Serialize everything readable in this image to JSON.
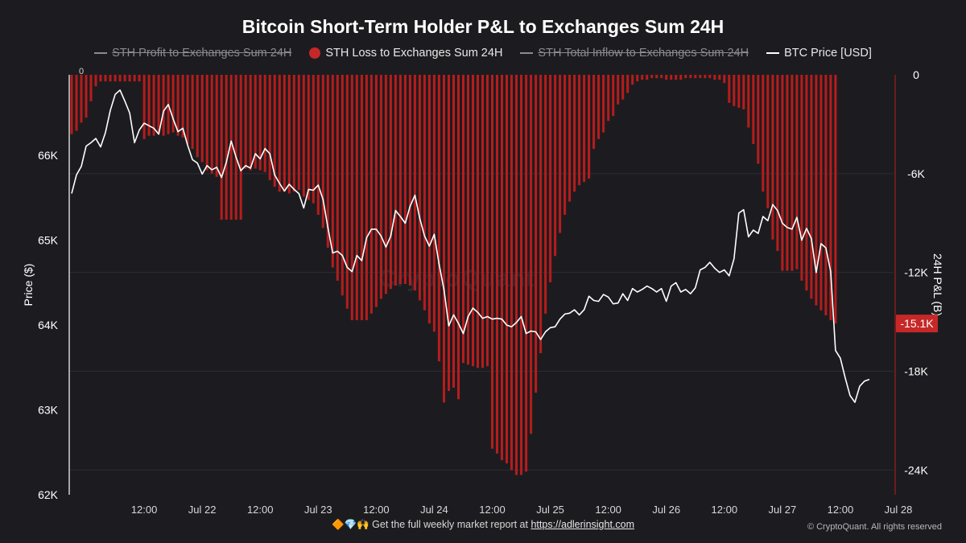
{
  "chart_data": {
    "type": "bar+line",
    "title": "Bitcoin Short-Term Holder P&L to Exchanges Sum 24H",
    "legend": [
      {
        "name": "STH Profit to Exchanges Sum 24H",
        "enabled": false,
        "symbol": "line"
      },
      {
        "name": "STH Loss to Exchanges Sum 24H",
        "enabled": true,
        "symbol": "dot",
        "color": "#c62828"
      },
      {
        "name": "STH Total Inflow to Exchanges Sum 24H",
        "enabled": false,
        "symbol": "line"
      },
      {
        "name": "BTC Price [USD]",
        "enabled": true,
        "symbol": "line",
        "color": "#ffffff"
      }
    ],
    "y_left": {
      "label": "Price ($)",
      "ticks": [
        "66K",
        "65K",
        "64K",
        "63K",
        "62K"
      ],
      "range": [
        62000,
        66950
      ]
    },
    "y_right": {
      "label": "24H P&L (B)",
      "ticks": [
        "0",
        "-6K",
        "-12K",
        "-18K",
        "-24K"
      ],
      "range": [
        -25500,
        0
      ]
    },
    "x_ticks": [
      "12:00",
      "Jul 22",
      "12:00",
      "Jul 23",
      "12:00",
      "Jul 24",
      "12:00",
      "Jul 25",
      "12:00",
      "Jul 26",
      "12:00",
      "Jul 27",
      "12:00",
      "Jul 28"
    ],
    "x_range_hours": [
      -15.5,
      155
    ],
    "top_zero_label": "0",
    "current_value_label": "-15.1K",
    "loss_series": [
      {
        "h": -15,
        "v": -3600
      },
      {
        "h": -14,
        "v": -3400
      },
      {
        "h": -13,
        "v": -2900
      },
      {
        "h": -12,
        "v": -2600
      },
      {
        "h": -11,
        "v": -1600
      },
      {
        "h": -10,
        "v": -700
      },
      {
        "h": -9,
        "v": -400
      },
      {
        "h": -8,
        "v": -400
      },
      {
        "h": -7,
        "v": -400
      },
      {
        "h": -6,
        "v": -400
      },
      {
        "h": -5,
        "v": -400
      },
      {
        "h": -4,
        "v": -400
      },
      {
        "h": -3,
        "v": -400
      },
      {
        "h": -2,
        "v": -400
      },
      {
        "h": -1,
        "v": -400
      },
      {
        "h": 0,
        "v": -3900
      },
      {
        "h": 1,
        "v": -3700
      },
      {
        "h": 2,
        "v": -3700
      },
      {
        "h": 3,
        "v": -3600
      },
      {
        "h": 4,
        "v": -3700
      },
      {
        "h": 5,
        "v": -3600
      },
      {
        "h": 6,
        "v": -3500
      },
      {
        "h": 7,
        "v": -3700
      },
      {
        "h": 8,
        "v": -3800
      },
      {
        "h": 9,
        "v": -4200
      },
      {
        "h": 10,
        "v": -4500
      },
      {
        "h": 11,
        "v": -5000
      },
      {
        "h": 12,
        "v": -5300
      },
      {
        "h": 13,
        "v": -5800
      },
      {
        "h": 14,
        "v": -6000
      },
      {
        "h": 15,
        "v": -6200
      },
      {
        "h": 16,
        "v": -8800
      },
      {
        "h": 17,
        "v": -8800
      },
      {
        "h": 18,
        "v": -8800
      },
      {
        "h": 19,
        "v": -8800
      },
      {
        "h": 20,
        "v": -8800
      },
      {
        "h": 21,
        "v": -5700
      },
      {
        "h": 22,
        "v": -5800
      },
      {
        "h": 23,
        "v": -5700
      },
      {
        "h": 24,
        "v": -5800
      },
      {
        "h": 25,
        "v": -5900
      },
      {
        "h": 26,
        "v": -6400
      },
      {
        "h": 27,
        "v": -6800
      },
      {
        "h": 28,
        "v": -7100
      },
      {
        "h": 29,
        "v": -7100
      },
      {
        "h": 30,
        "v": -7200
      },
      {
        "h": 31,
        "v": -7100
      },
      {
        "h": 32,
        "v": -7000
      },
      {
        "h": 33,
        "v": -7400
      },
      {
        "h": 34,
        "v": -7600
      },
      {
        "h": 35,
        "v": -7800
      },
      {
        "h": 36,
        "v": -8500
      },
      {
        "h": 37,
        "v": -9300
      },
      {
        "h": 38,
        "v": -10500
      },
      {
        "h": 39,
        "v": -11700
      },
      {
        "h": 40,
        "v": -12500
      },
      {
        "h": 41,
        "v": -13400
      },
      {
        "h": 42,
        "v": -14200
      },
      {
        "h": 43,
        "v": -14900
      },
      {
        "h": 44,
        "v": -14900
      },
      {
        "h": 45,
        "v": -14900
      },
      {
        "h": 46,
        "v": -14900
      },
      {
        "h": 47,
        "v": -14500
      },
      {
        "h": 48,
        "v": -14100
      },
      {
        "h": 49,
        "v": -13600
      },
      {
        "h": 50,
        "v": -13300
      },
      {
        "h": 51,
        "v": -13000
      },
      {
        "h": 52,
        "v": -12800
      },
      {
        "h": 53,
        "v": -12700
      },
      {
        "h": 54,
        "v": -12700
      },
      {
        "h": 55,
        "v": -12800
      },
      {
        "h": 56,
        "v": -13100
      },
      {
        "h": 57,
        "v": -13700
      },
      {
        "h": 58,
        "v": -14300
      },
      {
        "h": 59,
        "v": -15100
      },
      {
        "h": 60,
        "v": -15600
      },
      {
        "h": 61,
        "v": -17400
      },
      {
        "h": 62,
        "v": -19900
      },
      {
        "h": 63,
        "v": -19200
      },
      {
        "h": 64,
        "v": -19000
      },
      {
        "h": 65,
        "v": -19700
      },
      {
        "h": 66,
        "v": -17500
      },
      {
        "h": 67,
        "v": -17600
      },
      {
        "h": 68,
        "v": -17700
      },
      {
        "h": 69,
        "v": -17800
      },
      {
        "h": 70,
        "v": -17800
      },
      {
        "h": 71,
        "v": -17700
      },
      {
        "h": 72,
        "v": -22700
      },
      {
        "h": 73,
        "v": -23000
      },
      {
        "h": 74,
        "v": -23400
      },
      {
        "h": 75,
        "v": -23600
      },
      {
        "h": 76,
        "v": -24000
      },
      {
        "h": 77,
        "v": -24300
      },
      {
        "h": 78,
        "v": -24300
      },
      {
        "h": 79,
        "v": -24100
      },
      {
        "h": 80,
        "v": -21800
      },
      {
        "h": 81,
        "v": -19300
      },
      {
        "h": 82,
        "v": -16900
      },
      {
        "h": 83,
        "v": -14500
      },
      {
        "h": 84,
        "v": -12600
      },
      {
        "h": 85,
        "v": -11000
      },
      {
        "h": 86,
        "v": -9600
      },
      {
        "h": 87,
        "v": -8500
      },
      {
        "h": 88,
        "v": -7700
      },
      {
        "h": 89,
        "v": -7100
      },
      {
        "h": 90,
        "v": -6700
      },
      {
        "h": 91,
        "v": -6500
      },
      {
        "h": 92,
        "v": -6300
      },
      {
        "h": 93,
        "v": -4500
      },
      {
        "h": 94,
        "v": -3900
      },
      {
        "h": 95,
        "v": -3500
      },
      {
        "h": 96,
        "v": -2800
      },
      {
        "h": 97,
        "v": -2500
      },
      {
        "h": 98,
        "v": -1800
      },
      {
        "h": 99,
        "v": -1500
      },
      {
        "h": 100,
        "v": -1100
      },
      {
        "h": 101,
        "v": -600
      },
      {
        "h": 102,
        "v": -400
      },
      {
        "h": 103,
        "v": -300
      },
      {
        "h": 104,
        "v": -300
      },
      {
        "h": 105,
        "v": -200
      },
      {
        "h": 106,
        "v": -200
      },
      {
        "h": 107,
        "v": -200
      },
      {
        "h": 108,
        "v": -300
      },
      {
        "h": 109,
        "v": -300
      },
      {
        "h": 110,
        "v": -300
      },
      {
        "h": 111,
        "v": -300
      },
      {
        "h": 112,
        "v": -200
      },
      {
        "h": 113,
        "v": -200
      },
      {
        "h": 114,
        "v": -200
      },
      {
        "h": 115,
        "v": -200
      },
      {
        "h": 116,
        "v": -200
      },
      {
        "h": 117,
        "v": -200
      },
      {
        "h": 118,
        "v": -300
      },
      {
        "h": 119,
        "v": -300
      },
      {
        "h": 120,
        "v": -500
      },
      {
        "h": 121,
        "v": -1700
      },
      {
        "h": 122,
        "v": -1900
      },
      {
        "h": 123,
        "v": -2000
      },
      {
        "h": 124,
        "v": -2100
      },
      {
        "h": 125,
        "v": -3200
      },
      {
        "h": 126,
        "v": -4200
      },
      {
        "h": 127,
        "v": -5400
      },
      {
        "h": 128,
        "v": -7100
      },
      {
        "h": 129,
        "v": -8100
      },
      {
        "h": 130,
        "v": -10000
      },
      {
        "h": 131,
        "v": -10700
      },
      {
        "h": 132,
        "v": -11900
      },
      {
        "h": 133,
        "v": -11900
      },
      {
        "h": 134,
        "v": -11900
      },
      {
        "h": 135,
        "v": -11800
      },
      {
        "h": 136,
        "v": -12500
      },
      {
        "h": 137,
        "v": -13100
      },
      {
        "h": 138,
        "v": -13600
      },
      {
        "h": 139,
        "v": -14000
      },
      {
        "h": 140,
        "v": -14300
      },
      {
        "h": 141,
        "v": -14600
      },
      {
        "h": 142,
        "v": -14900
      },
      {
        "h": 143,
        "v": -15100
      }
    ],
    "price_series": [
      {
        "h": -15,
        "v": 65550
      },
      {
        "h": -14,
        "v": 65770
      },
      {
        "h": -13,
        "v": 65870
      },
      {
        "h": -12,
        "v": 66110
      },
      {
        "h": -11,
        "v": 66150
      },
      {
        "h": -10,
        "v": 66200
      },
      {
        "h": -9,
        "v": 66100
      },
      {
        "h": -8,
        "v": 66270
      },
      {
        "h": -7,
        "v": 66530
      },
      {
        "h": -6,
        "v": 66720
      },
      {
        "h": -5,
        "v": 66770
      },
      {
        "h": -4,
        "v": 66640
      },
      {
        "h": -3,
        "v": 66500
      },
      {
        "h": -2,
        "v": 66150
      },
      {
        "h": -1,
        "v": 66300
      },
      {
        "h": 0,
        "v": 66380
      },
      {
        "h": 1,
        "v": 66350
      },
      {
        "h": 2,
        "v": 66320
      },
      {
        "h": 3,
        "v": 66250
      },
      {
        "h": 4,
        "v": 66520
      },
      {
        "h": 5,
        "v": 66600
      },
      {
        "h": 6,
        "v": 66430
      },
      {
        "h": 7,
        "v": 66280
      },
      {
        "h": 8,
        "v": 66320
      },
      {
        "h": 9,
        "v": 66120
      },
      {
        "h": 10,
        "v": 65950
      },
      {
        "h": 11,
        "v": 65910
      },
      {
        "h": 12,
        "v": 65780
      },
      {
        "h": 13,
        "v": 65880
      },
      {
        "h": 14,
        "v": 65830
      },
      {
        "h": 15,
        "v": 65860
      },
      {
        "h": 16,
        "v": 65740
      },
      {
        "h": 17,
        "v": 65920
      },
      {
        "h": 18,
        "v": 66170
      },
      {
        "h": 19,
        "v": 65980
      },
      {
        "h": 20,
        "v": 65820
      },
      {
        "h": 21,
        "v": 65880
      },
      {
        "h": 22,
        "v": 65850
      },
      {
        "h": 23,
        "v": 66020
      },
      {
        "h": 24,
        "v": 65960
      },
      {
        "h": 25,
        "v": 66080
      },
      {
        "h": 26,
        "v": 66020
      },
      {
        "h": 27,
        "v": 65770
      },
      {
        "h": 28,
        "v": 65670
      },
      {
        "h": 29,
        "v": 65580
      },
      {
        "h": 30,
        "v": 65660
      },
      {
        "h": 31,
        "v": 65600
      },
      {
        "h": 32,
        "v": 65550
      },
      {
        "h": 33,
        "v": 65380
      },
      {
        "h": 34,
        "v": 65600
      },
      {
        "h": 35,
        "v": 65590
      },
      {
        "h": 36,
        "v": 65650
      },
      {
        "h": 37,
        "v": 65480
      },
      {
        "h": 38,
        "v": 65150
      },
      {
        "h": 39,
        "v": 64850
      },
      {
        "h": 40,
        "v": 64870
      },
      {
        "h": 41,
        "v": 64820
      },
      {
        "h": 42,
        "v": 64680
      },
      {
        "h": 43,
        "v": 64630
      },
      {
        "h": 44,
        "v": 64820
      },
      {
        "h": 45,
        "v": 64760
      },
      {
        "h": 46,
        "v": 65030
      },
      {
        "h": 47,
        "v": 65130
      },
      {
        "h": 48,
        "v": 65130
      },
      {
        "h": 49,
        "v": 65050
      },
      {
        "h": 50,
        "v": 64920
      },
      {
        "h": 51,
        "v": 65050
      },
      {
        "h": 52,
        "v": 65350
      },
      {
        "h": 53,
        "v": 65280
      },
      {
        "h": 54,
        "v": 65200
      },
      {
        "h": 55,
        "v": 65400
      },
      {
        "h": 56,
        "v": 65530
      },
      {
        "h": 57,
        "v": 65260
      },
      {
        "h": 58,
        "v": 65050
      },
      {
        "h": 59,
        "v": 64930
      },
      {
        "h": 60,
        "v": 65070
      },
      {
        "h": 61,
        "v": 64720
      },
      {
        "h": 62,
        "v": 64420
      },
      {
        "h": 63,
        "v": 63990
      },
      {
        "h": 64,
        "v": 64120
      },
      {
        "h": 65,
        "v": 64020
      },
      {
        "h": 66,
        "v": 63900
      },
      {
        "h": 67,
        "v": 64100
      },
      {
        "h": 68,
        "v": 64200
      },
      {
        "h": 69,
        "v": 64150
      },
      {
        "h": 70,
        "v": 64080
      },
      {
        "h": 71,
        "v": 64100
      },
      {
        "h": 72,
        "v": 64070
      },
      {
        "h": 73,
        "v": 64080
      },
      {
        "h": 74,
        "v": 64070
      },
      {
        "h": 75,
        "v": 64000
      },
      {
        "h": 76,
        "v": 63980
      },
      {
        "h": 77,
        "v": 64030
      },
      {
        "h": 78,
        "v": 64100
      },
      {
        "h": 79,
        "v": 63900
      },
      {
        "h": 80,
        "v": 63930
      },
      {
        "h": 81,
        "v": 63920
      },
      {
        "h": 82,
        "v": 63830
      },
      {
        "h": 83,
        "v": 63920
      },
      {
        "h": 84,
        "v": 63970
      },
      {
        "h": 85,
        "v": 63980
      },
      {
        "h": 86,
        "v": 64070
      },
      {
        "h": 87,
        "v": 64130
      },
      {
        "h": 88,
        "v": 64140
      },
      {
        "h": 89,
        "v": 64180
      },
      {
        "h": 90,
        "v": 64120
      },
      {
        "h": 91,
        "v": 64180
      },
      {
        "h": 92,
        "v": 64340
      },
      {
        "h": 93,
        "v": 64290
      },
      {
        "h": 94,
        "v": 64280
      },
      {
        "h": 95,
        "v": 64360
      },
      {
        "h": 96,
        "v": 64330
      },
      {
        "h": 97,
        "v": 64250
      },
      {
        "h": 98,
        "v": 64260
      },
      {
        "h": 99,
        "v": 64370
      },
      {
        "h": 100,
        "v": 64290
      },
      {
        "h": 101,
        "v": 64430
      },
      {
        "h": 102,
        "v": 64390
      },
      {
        "h": 103,
        "v": 64420
      },
      {
        "h": 104,
        "v": 64460
      },
      {
        "h": 105,
        "v": 64430
      },
      {
        "h": 106,
        "v": 64390
      },
      {
        "h": 107,
        "v": 64430
      },
      {
        "h": 108,
        "v": 64280
      },
      {
        "h": 109,
        "v": 64460
      },
      {
        "h": 110,
        "v": 64500
      },
      {
        "h": 111,
        "v": 64390
      },
      {
        "h": 112,
        "v": 64420
      },
      {
        "h": 113,
        "v": 64370
      },
      {
        "h": 114,
        "v": 64440
      },
      {
        "h": 115,
        "v": 64650
      },
      {
        "h": 116,
        "v": 64680
      },
      {
        "h": 117,
        "v": 64740
      },
      {
        "h": 118,
        "v": 64670
      },
      {
        "h": 119,
        "v": 64620
      },
      {
        "h": 120,
        "v": 64650
      },
      {
        "h": 121,
        "v": 64580
      },
      {
        "h": 122,
        "v": 64780
      },
      {
        "h": 123,
        "v": 65320
      },
      {
        "h": 124,
        "v": 65360
      },
      {
        "h": 125,
        "v": 65040
      },
      {
        "h": 126,
        "v": 65120
      },
      {
        "h": 127,
        "v": 65080
      },
      {
        "h": 128,
        "v": 65280
      },
      {
        "h": 129,
        "v": 65230
      },
      {
        "h": 130,
        "v": 65420
      },
      {
        "h": 131,
        "v": 65350
      },
      {
        "h": 132,
        "v": 65200
      },
      {
        "h": 133,
        "v": 65150
      },
      {
        "h": 134,
        "v": 65130
      },
      {
        "h": 135,
        "v": 65270
      },
      {
        "h": 136,
        "v": 65000
      },
      {
        "h": 137,
        "v": 65140
      },
      {
        "h": 138,
        "v": 65020
      },
      {
        "h": 139,
        "v": 64620
      },
      {
        "h": 140,
        "v": 64960
      },
      {
        "h": 141,
        "v": 64910
      },
      {
        "h": 142,
        "v": 64630
      },
      {
        "h": 143,
        "v": 63700
      },
      {
        "h": 144,
        "v": 63610
      },
      {
        "h": 145,
        "v": 63380
      },
      {
        "h": 146,
        "v": 63170
      },
      {
        "h": 147,
        "v": 63090
      },
      {
        "h": 148,
        "v": 63280
      },
      {
        "h": 149,
        "v": 63340
      },
      {
        "h": 150,
        "v": 63360
      }
    ]
  },
  "footer": {
    "icons": "🔶💎🙌",
    "text": "Get the full weekly market report at",
    "link": "https://adlerinsight.com"
  },
  "copyright": "© CryptoQuant. All rights reserved",
  "watermark": "CryptoQuant",
  "colors": {
    "background": "#1c1c20",
    "loss_bar": "#b71c1c",
    "price_line": "#ffffff",
    "grid": "#2c2c32",
    "value_badge": "#c62828"
  }
}
